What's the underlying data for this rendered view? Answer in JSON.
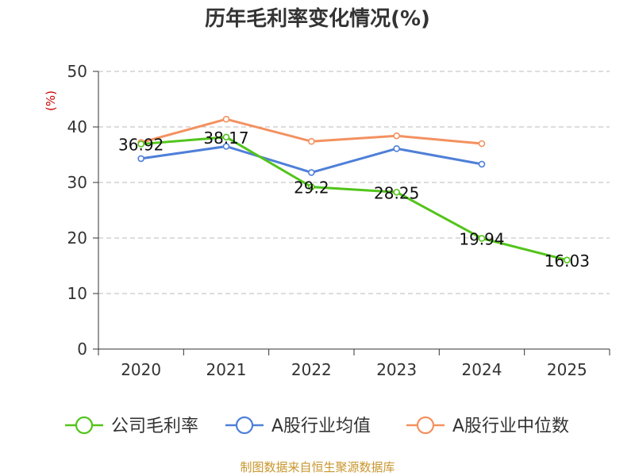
{
  "chart_data": {
    "type": "line",
    "title": "历年毛利率变化情况(%)",
    "ylabel": "(%)",
    "xlabel": "",
    "categories": [
      "2020",
      "2021",
      "2022",
      "2023",
      "2024",
      "2025"
    ],
    "ylim": [
      0,
      50
    ],
    "yticks": [
      0,
      10,
      20,
      30,
      40,
      50
    ],
    "grid": true,
    "legend_position": "bottom",
    "series": [
      {
        "name": "公司毛利率",
        "color": "#52c41a",
        "values": [
          36.92,
          38.17,
          29.2,
          28.25,
          19.94,
          16.03
        ],
        "labels": [
          "36.92",
          "38.17",
          "29.2",
          "28.25",
          "19.94",
          "16.03"
        ]
      },
      {
        "name": "A股行业均值",
        "color": "#4f7fd8",
        "values": [
          34.3,
          36.5,
          31.8,
          36.1,
          33.3,
          null
        ]
      },
      {
        "name": "A股行业中位数",
        "color": "#f39160",
        "values": [
          37.2,
          41.4,
          37.4,
          38.4,
          37.0,
          null
        ]
      }
    ],
    "source": "制图数据来自恒生聚源数据库"
  }
}
